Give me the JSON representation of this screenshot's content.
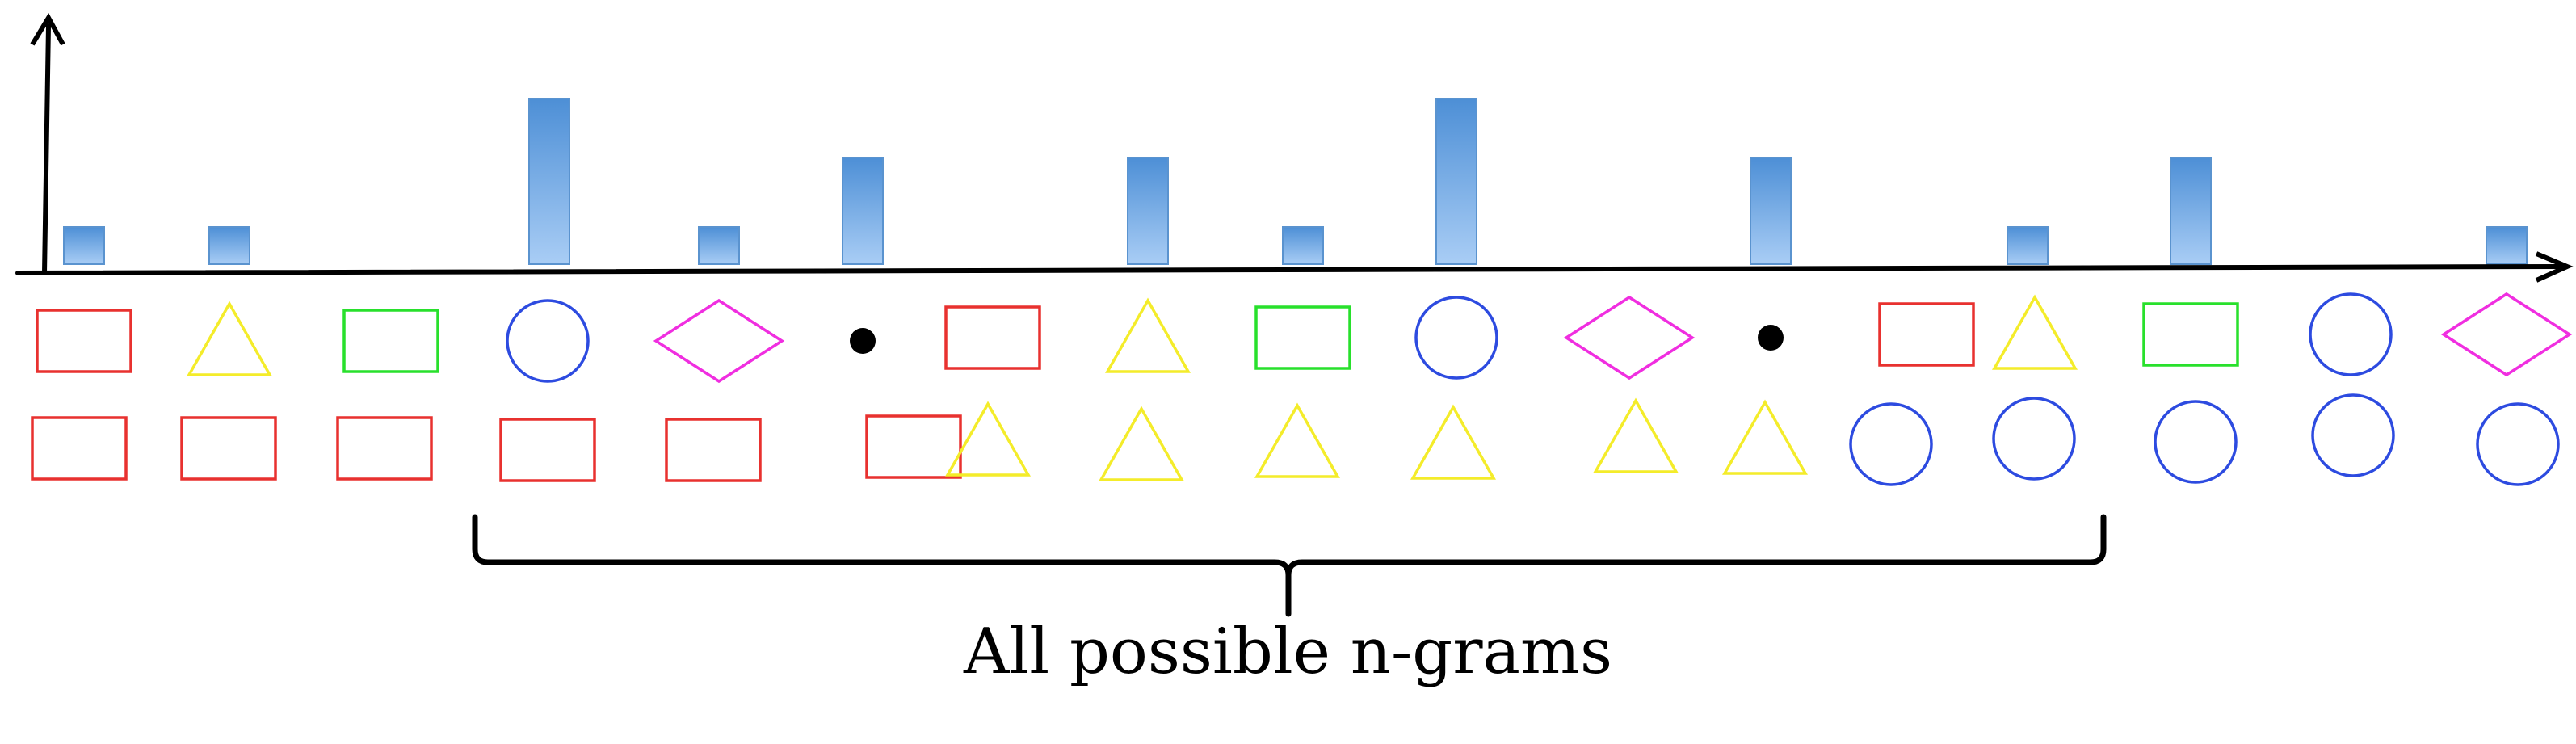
{
  "caption": "All possible n-grams",
  "colors": {
    "rect": "#e8312f",
    "triangle": "#f4ec2a",
    "green_rect": "#28e02c",
    "circle": "#2d4be0",
    "diamond": "#f02ee0",
    "dot": "#000000",
    "bar_top": "#4d8fd6",
    "bar_bottom": "#a9cdf5",
    "axis": "#000000"
  },
  "histogram": {
    "type": "bar",
    "values": [
      1,
      1,
      0,
      4,
      1,
      2,
      0,
      2,
      1,
      4,
      0,
      2,
      0,
      1,
      2,
      0,
      1
    ],
    "ylim": [
      0,
      4
    ]
  },
  "sequence_row": [
    "rect",
    "triangle",
    "green-rect",
    "circle",
    "diamond",
    "dot",
    "rect",
    "triangle",
    "green-rect",
    "circle",
    "diamond",
    "dot",
    "rect",
    "triangle",
    "green-rect",
    "circle",
    "diamond"
  ],
  "sorted_row": [
    "rect",
    "rect",
    "rect",
    "rect",
    "rect",
    "rect",
    "triangle",
    "triangle",
    "triangle",
    "triangle",
    "triangle",
    "triangle",
    "circle",
    "circle",
    "circle",
    "circle",
    "circle"
  ]
}
